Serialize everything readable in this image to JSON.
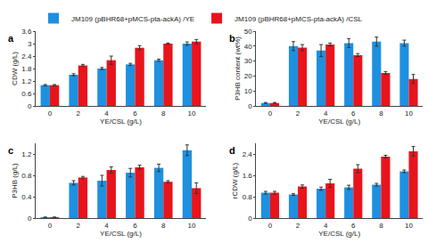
{
  "chart_data": [
    {
      "type": "bar",
      "title": "a",
      "categories": [
        "0",
        "2",
        "4",
        "6",
        "8",
        "10"
      ],
      "x_label": "YE/CSL (g/L)",
      "y_label": "CDW (g/L)",
      "ylim": [
        0,
        3.6
      ],
      "yticks": [
        0,
        0.6,
        1.2,
        1.8,
        2.4,
        3,
        3.6
      ],
      "grid": false,
      "legend": "top",
      "series": [
        {
          "name": "JM109 (pBHR68+pMCS-pta-ackA) /YE",
          "color": "#1e90e0",
          "values": [
            1.0,
            1.5,
            1.8,
            2.0,
            2.2,
            3.0
          ],
          "errors": [
            0.03,
            0.05,
            0.05,
            0.05,
            0.05,
            0.08
          ]
        },
        {
          "name": "JM109 (pBHR68+pMCS-pta-ackA) /CSL",
          "color": "#e8141c",
          "values": [
            1.0,
            1.95,
            2.2,
            2.8,
            3.0,
            3.1
          ],
          "errors": [
            0.03,
            0.05,
            0.2,
            0.1,
            0.03,
            0.1
          ]
        }
      ]
    },
    {
      "type": "bar",
      "title": "b",
      "categories": [
        "0",
        "2",
        "4",
        "6",
        "8",
        "10"
      ],
      "x_label": "YE/CSL (g/L)",
      "y_label": "P3HB content (wt%)",
      "ylim": [
        0,
        50
      ],
      "yticks": [
        0,
        10,
        20,
        30,
        40,
        50
      ],
      "grid": false,
      "series": [
        {
          "name": "JM109 (pBHR68+pMCS-pta-ackA) /YE",
          "color": "#1e90e0",
          "values": [
            2,
            40,
            37,
            42,
            43,
            42
          ],
          "errors": [
            0.3,
            3,
            4,
            3,
            3,
            2
          ]
        },
        {
          "name": "JM109 (pBHR68+pMCS-pta-ackA) /CSL",
          "color": "#e8141c",
          "values": [
            2,
            39,
            41,
            34,
            22,
            18
          ],
          "errors": [
            0.3,
            2,
            1,
            1,
            1,
            3
          ]
        }
      ]
    },
    {
      "type": "bar",
      "title": "c",
      "categories": [
        "0",
        "2",
        "4",
        "6",
        "8",
        "10"
      ],
      "x_label": "YE/CSL (g/L)",
      "y_label": "P3HB (g/L)",
      "ylim": [
        0,
        1.4
      ],
      "yticks": [
        0,
        0.4,
        0.8,
        1.2
      ],
      "grid": false,
      "series": [
        {
          "name": "JM109 (pBHR68+pMCS-pta-ackA) /YE",
          "color": "#1e90e0",
          "values": [
            0.01,
            0.66,
            0.7,
            0.85,
            0.94,
            1.27
          ],
          "errors": [
            0.01,
            0.04,
            0.1,
            0.08,
            0.07,
            0.1
          ]
        },
        {
          "name": "JM109 (pBHR68+pMCS-pta-ackA) /CSL",
          "color": "#e8141c",
          "values": [
            0.01,
            0.76,
            0.9,
            0.95,
            0.68,
            0.56
          ],
          "errors": [
            0.01,
            0.02,
            0.06,
            0.04,
            0.02,
            0.1
          ]
        }
      ]
    },
    {
      "type": "bar",
      "title": "d",
      "categories": [
        "0",
        "2",
        "4",
        "6",
        "8",
        "10"
      ],
      "x_label": "YE/CSL (g/L)",
      "y_label": "rCDW (g/L)",
      "ylim": [
        0,
        2.8
      ],
      "yticks": [
        0,
        0.8,
        1.6,
        2.4
      ],
      "grid": false,
      "series": [
        {
          "name": "JM109 (pBHR68+pMCS-pta-ackA) /YE",
          "color": "#1e90e0",
          "values": [
            0.95,
            0.88,
            1.1,
            1.15,
            1.25,
            1.75
          ],
          "errors": [
            0.05,
            0.03,
            0.06,
            0.08,
            0.05,
            0.05
          ]
        },
        {
          "name": "JM109 (pBHR68+pMCS-pta-ackA) /CSL",
          "color": "#e8141c",
          "values": [
            0.95,
            1.18,
            1.3,
            1.85,
            2.3,
            2.5
          ],
          "errors": [
            0.05,
            0.06,
            0.15,
            0.15,
            0.05,
            0.18
          ]
        }
      ]
    }
  ]
}
